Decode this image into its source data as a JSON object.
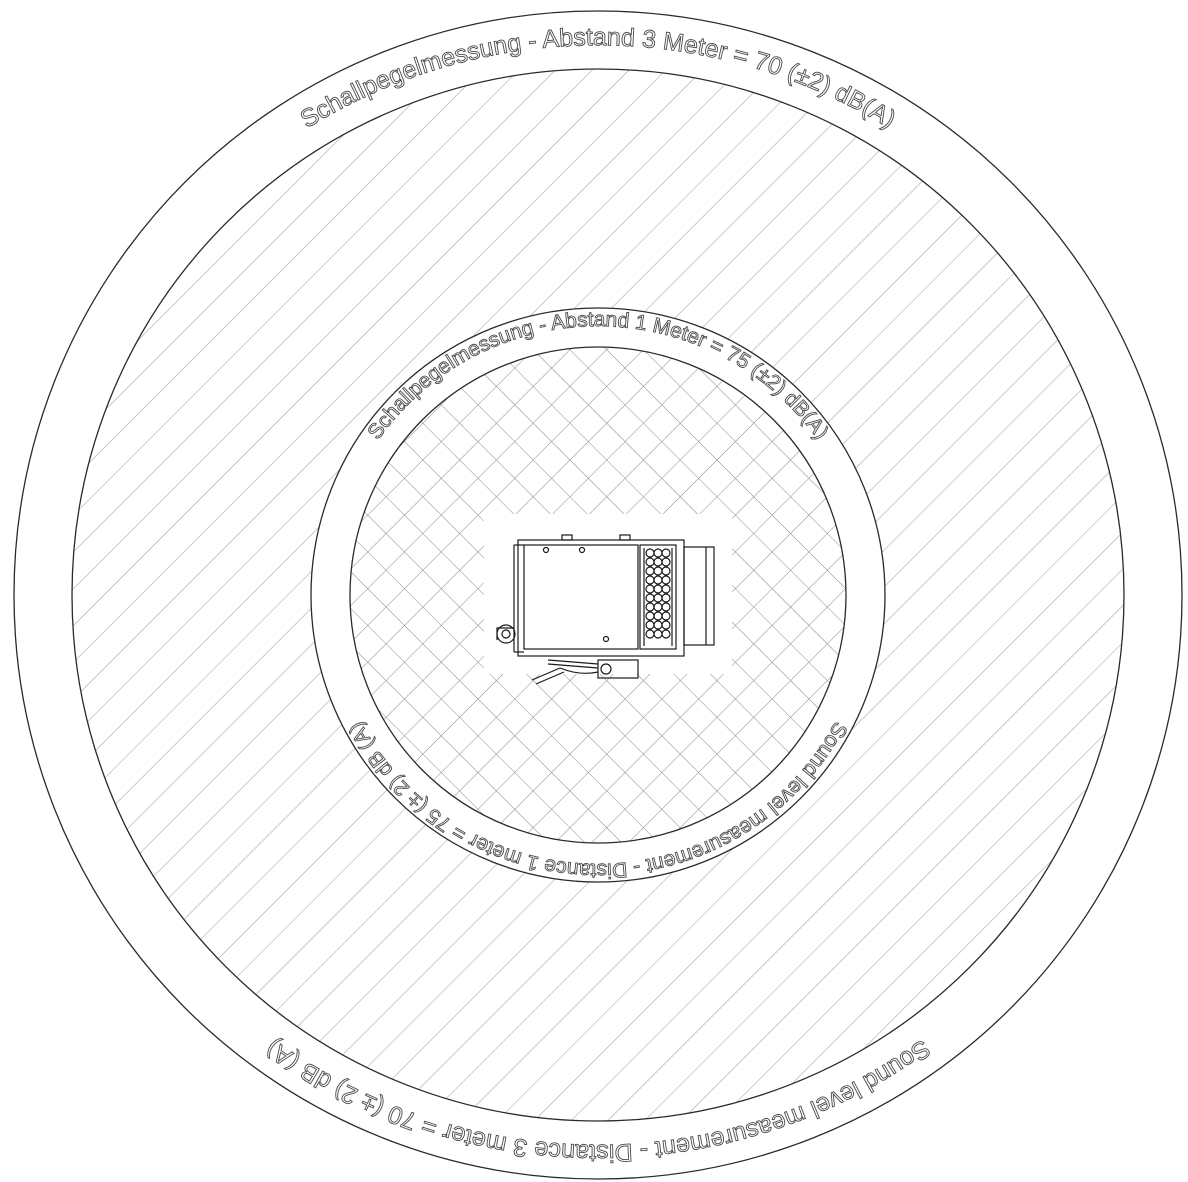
{
  "outer_ring": {
    "label_top": "Schallpegelmessung - Abstand 3 Meter = 70 (±2) dB(A)",
    "label_bottom": "Sound level measurement - Distance 3 meter = 70 (± 2) dB (A)"
  },
  "inner_ring": {
    "label_top": "Schallpegelmessung - Abstand 1 Meter = 75 (±2) dB(A)",
    "label_bottom": "Sound level measurement - Distance 1 meter = 75 (± 2) dB (A)"
  },
  "colors": {
    "line": "#2a2a2a",
    "hatch": "#9a9a9a",
    "background": "#ffffff"
  },
  "icons": [
    "machine-top-view-icon"
  ]
}
